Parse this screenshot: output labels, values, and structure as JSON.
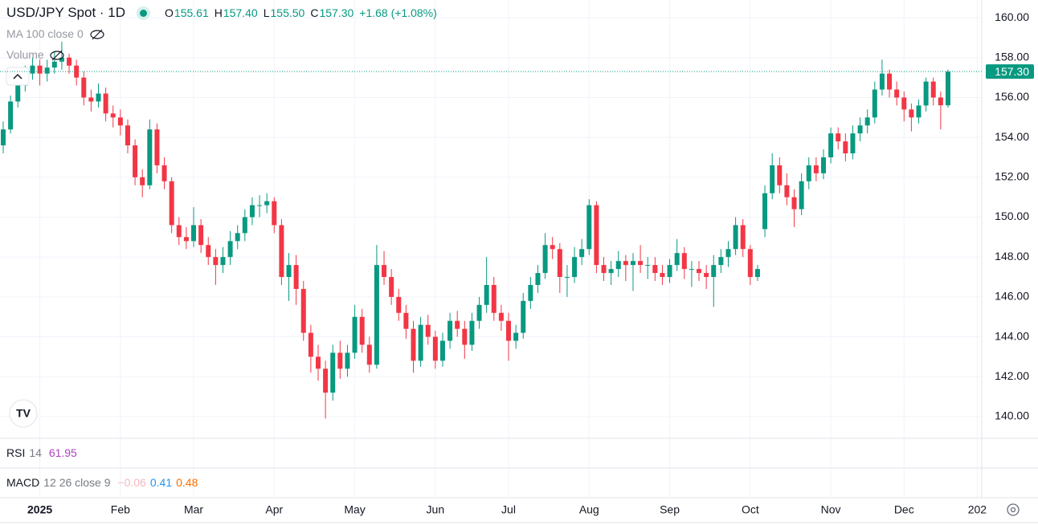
{
  "chart_data": {
    "type": "candlestick",
    "title": "USD/JPY Spot · 1D",
    "ohlc_labels": [
      "O",
      "H",
      "L",
      "C"
    ],
    "ohlc_value_labels": [
      "155.61",
      "157.40",
      "155.50",
      "157.30"
    ],
    "change": "+1.68 (+1.08%)",
    "last_price_label": "157.30",
    "overlays": [
      {
        "name": "MA",
        "params": "100 close 0"
      },
      {
        "name": "Volume"
      }
    ],
    "rsi": {
      "name": "RSI",
      "params": "14",
      "value": "61.95"
    },
    "macd": {
      "name": "MACD",
      "params": "12 26 close 9",
      "values": [
        "−0.06",
        "0.41",
        "0.48"
      ]
    },
    "up_color": "#089981",
    "down_color": "#f23645",
    "ylim": [
      138.91,
      160.89
    ],
    "yticks": [
      {
        "value": 140,
        "label": "140.00"
      },
      {
        "value": 142,
        "label": "142.00"
      },
      {
        "value": 144,
        "label": "144.00"
      },
      {
        "value": 146,
        "label": "146.00"
      },
      {
        "value": 148,
        "label": "148.00"
      },
      {
        "value": 150,
        "label": "150.00"
      },
      {
        "value": 152,
        "label": "152.00"
      },
      {
        "value": 154,
        "label": "154.00"
      },
      {
        "value": 156,
        "label": "156.00"
      },
      {
        "value": 158,
        "label": "158.00"
      },
      {
        "value": 160,
        "label": "160.00"
      }
    ],
    "grid": true,
    "categories": [
      null,
      null,
      null,
      null,
      null,
      "2025",
      null,
      null,
      null,
      null,
      null,
      null,
      null,
      null,
      null,
      null,
      "Feb",
      null,
      null,
      null,
      null,
      null,
      null,
      null,
      null,
      null,
      "Mar",
      null,
      null,
      null,
      null,
      null,
      null,
      null,
      null,
      null,
      null,
      "Apr",
      null,
      null,
      null,
      null,
      null,
      null,
      null,
      null,
      null,
      null,
      "May",
      null,
      null,
      null,
      null,
      null,
      null,
      null,
      null,
      null,
      null,
      "Jun",
      null,
      null,
      null,
      null,
      null,
      null,
      null,
      null,
      null,
      "Jul",
      null,
      null,
      null,
      null,
      null,
      null,
      null,
      null,
      null,
      null,
      "Aug",
      null,
      null,
      null,
      null,
      null,
      null,
      null,
      null,
      null,
      null,
      "Sep",
      null,
      null,
      null,
      null,
      null,
      null,
      null,
      null,
      null,
      null,
      "Oct",
      null,
      null,
      null,
      null,
      null,
      null,
      null,
      null,
      null,
      null,
      "Nov",
      null,
      null,
      null,
      null,
      null,
      null,
      null,
      null,
      null,
      "Dec",
      null,
      null,
      null,
      null,
      null,
      null,
      null,
      null,
      null,
      "202"
    ],
    "candles": [
      [
        153.6,
        154.8,
        153.2,
        154.4
      ],
      [
        154.4,
        156.1,
        154.2,
        155.8
      ],
      [
        155.8,
        156.9,
        155.5,
        156.6
      ],
      [
        156.6,
        157.6,
        156.3,
        157.2
      ],
      [
        157.2,
        158.0,
        156.9,
        157.6
      ],
      [
        157.6,
        157.9,
        156.6,
        157.2
      ],
      [
        157.2,
        157.9,
        156.8,
        157.5
      ],
      [
        157.5,
        158.3,
        157.2,
        157.8
      ],
      [
        157.8,
        158.8,
        157.4,
        158.0
      ],
      [
        158.0,
        158.2,
        157.2,
        157.6
      ],
      [
        157.6,
        157.9,
        156.6,
        157.0
      ],
      [
        157.0,
        157.3,
        155.6,
        156.0
      ],
      [
        156.0,
        156.4,
        155.3,
        155.8
      ],
      [
        155.8,
        156.7,
        155.5,
        156.2
      ],
      [
        156.2,
        156.5,
        154.8,
        155.2
      ],
      [
        155.2,
        155.6,
        154.5,
        155.0
      ],
      [
        155.0,
        155.4,
        154.1,
        154.6
      ],
      [
        154.6,
        154.9,
        153.2,
        153.6
      ],
      [
        153.6,
        153.9,
        151.6,
        152.0
      ],
      [
        152.0,
        152.4,
        151.0,
        151.6
      ],
      [
        151.6,
        154.9,
        151.4,
        154.4
      ],
      [
        154.4,
        154.7,
        152.2,
        152.6
      ],
      [
        152.6,
        153.0,
        151.4,
        151.8
      ],
      [
        151.8,
        152.0,
        149.2,
        149.6
      ],
      [
        149.6,
        150.0,
        148.6,
        149.0
      ],
      [
        149.0,
        149.5,
        148.4,
        148.8
      ],
      [
        148.8,
        150.5,
        148.5,
        149.6
      ],
      [
        149.6,
        149.9,
        148.2,
        148.6
      ],
      [
        148.6,
        149.0,
        147.6,
        148.0
      ],
      [
        148.0,
        148.4,
        146.6,
        147.6
      ],
      [
        147.6,
        148.5,
        147.2,
        148.0
      ],
      [
        148.0,
        149.3,
        147.6,
        148.8
      ],
      [
        148.8,
        149.6,
        148.4,
        149.2
      ],
      [
        149.2,
        150.4,
        148.8,
        150.0
      ],
      [
        150.0,
        151.0,
        149.6,
        150.6
      ],
      [
        150.6,
        151.1,
        150.0,
        150.6
      ],
      [
        150.6,
        151.2,
        150.2,
        150.8
      ],
      [
        150.8,
        151.0,
        149.2,
        149.6
      ],
      [
        149.6,
        149.9,
        146.6,
        147.0
      ],
      [
        147.0,
        148.2,
        145.8,
        147.6
      ],
      [
        147.6,
        148.1,
        145.6,
        146.4
      ],
      [
        146.4,
        146.8,
        143.8,
        144.2
      ],
      [
        144.2,
        144.6,
        142.2,
        143.0
      ],
      [
        143.0,
        143.6,
        141.8,
        142.4
      ],
      [
        142.4,
        142.8,
        139.9,
        141.2
      ],
      [
        141.2,
        143.6,
        140.8,
        143.2
      ],
      [
        143.2,
        143.8,
        141.9,
        142.4
      ],
      [
        142.4,
        143.6,
        142.0,
        143.2
      ],
      [
        143.2,
        145.6,
        142.9,
        145.0
      ],
      [
        145.0,
        145.4,
        143.2,
        143.6
      ],
      [
        143.6,
        144.0,
        142.2,
        142.6
      ],
      [
        142.6,
        148.6,
        142.4,
        147.6
      ],
      [
        147.6,
        148.3,
        146.6,
        147.0
      ],
      [
        147.0,
        147.4,
        145.6,
        146.0
      ],
      [
        146.0,
        146.4,
        144.8,
        145.2
      ],
      [
        145.2,
        145.6,
        143.9,
        144.4
      ],
      [
        144.4,
        144.8,
        142.2,
        142.8
      ],
      [
        142.8,
        145.0,
        142.5,
        144.6
      ],
      [
        144.6,
        145.1,
        143.6,
        144.0
      ],
      [
        144.0,
        144.3,
        142.4,
        142.8
      ],
      [
        142.8,
        144.2,
        142.5,
        143.8
      ],
      [
        143.8,
        145.2,
        143.4,
        144.8
      ],
      [
        144.8,
        145.3,
        144.0,
        144.4
      ],
      [
        144.4,
        144.8,
        142.9,
        143.6
      ],
      [
        143.6,
        145.2,
        143.3,
        144.8
      ],
      [
        144.8,
        146.0,
        144.4,
        145.6
      ],
      [
        145.6,
        148.0,
        145.2,
        146.6
      ],
      [
        146.6,
        147.0,
        144.8,
        145.2
      ],
      [
        145.2,
        145.6,
        144.3,
        144.8
      ],
      [
        144.8,
        145.2,
        142.8,
        143.8
      ],
      [
        143.8,
        144.6,
        143.4,
        144.2
      ],
      [
        144.2,
        146.2,
        143.9,
        145.8
      ],
      [
        145.8,
        147.0,
        145.4,
        146.6
      ],
      [
        146.6,
        147.6,
        146.2,
        147.2
      ],
      [
        147.2,
        149.2,
        146.9,
        148.6
      ],
      [
        148.6,
        149.0,
        147.9,
        148.4
      ],
      [
        148.4,
        148.7,
        146.2,
        147.0
      ],
      [
        147.0,
        147.6,
        146.0,
        147.0
      ],
      [
        147.0,
        148.5,
        146.7,
        148.0
      ],
      [
        148.0,
        148.9,
        147.6,
        148.4
      ],
      [
        148.4,
        150.9,
        148.1,
        150.6
      ],
      [
        150.6,
        150.8,
        147.2,
        147.6
      ],
      [
        147.6,
        148.0,
        146.8,
        147.2
      ],
      [
        147.2,
        147.8,
        146.6,
        147.4
      ],
      [
        147.4,
        148.3,
        147.0,
        147.8
      ],
      [
        147.8,
        148.1,
        146.8,
        147.6
      ],
      [
        147.6,
        148.2,
        146.3,
        147.8
      ],
      [
        147.8,
        148.6,
        147.2,
        147.6
      ],
      [
        147.6,
        148.0,
        146.9,
        147.6
      ],
      [
        147.6,
        148.0,
        146.8,
        147.2
      ],
      [
        147.2,
        147.6,
        146.6,
        147.0
      ],
      [
        147.0,
        147.9,
        146.7,
        147.6
      ],
      [
        147.6,
        148.9,
        147.3,
        148.2
      ],
      [
        148.2,
        148.5,
        146.9,
        147.4
      ],
      [
        147.4,
        147.8,
        146.5,
        147.4
      ],
      [
        147.4,
        147.8,
        146.8,
        147.2
      ],
      [
        147.2,
        147.6,
        146.4,
        147.0
      ],
      [
        147.0,
        148.1,
        145.5,
        147.6
      ],
      [
        147.6,
        148.4,
        147.2,
        148.0
      ],
      [
        148.0,
        148.8,
        147.5,
        148.4
      ],
      [
        148.4,
        150.0,
        148.1,
        149.6
      ],
      [
        149.6,
        149.9,
        148.0,
        148.4
      ],
      [
        148.4,
        148.6,
        146.6,
        147.0
      ],
      [
        147.0,
        147.6,
        146.8,
        147.4
      ],
      [
        149.4,
        151.6,
        149.0,
        151.2
      ],
      [
        151.2,
        153.2,
        150.9,
        152.6
      ],
      [
        152.6,
        153.0,
        151.2,
        151.6
      ],
      [
        151.6,
        152.2,
        150.6,
        151.0
      ],
      [
        151.0,
        151.4,
        149.5,
        150.4
      ],
      [
        150.4,
        152.2,
        150.1,
        151.8
      ],
      [
        151.8,
        153.0,
        151.4,
        152.6
      ],
      [
        152.6,
        153.0,
        151.8,
        152.2
      ],
      [
        152.2,
        153.4,
        151.9,
        153.0
      ],
      [
        153.0,
        154.5,
        152.7,
        154.2
      ],
      [
        154.2,
        154.5,
        153.4,
        153.8
      ],
      [
        153.8,
        154.2,
        152.8,
        153.2
      ],
      [
        153.2,
        154.6,
        152.9,
        154.2
      ],
      [
        154.2,
        155.0,
        153.8,
        154.6
      ],
      [
        154.6,
        155.4,
        154.2,
        155.0
      ],
      [
        155.0,
        156.8,
        154.7,
        156.4
      ],
      [
        156.4,
        157.9,
        156.1,
        157.2
      ],
      [
        157.2,
        157.4,
        156.0,
        156.4
      ],
      [
        156.4,
        156.8,
        155.6,
        156.0
      ],
      [
        156.0,
        156.3,
        154.8,
        155.4
      ],
      [
        155.4,
        155.7,
        154.3,
        155.0
      ],
      [
        155.0,
        155.9,
        154.7,
        155.6
      ],
      [
        155.6,
        157.0,
        155.3,
        156.8
      ],
      [
        156.8,
        157.0,
        155.6,
        156.0
      ],
      [
        156.0,
        156.3,
        154.4,
        155.61
      ],
      [
        155.61,
        157.4,
        155.5,
        157.3
      ],
      null,
      null,
      null,
      null
    ]
  }
}
